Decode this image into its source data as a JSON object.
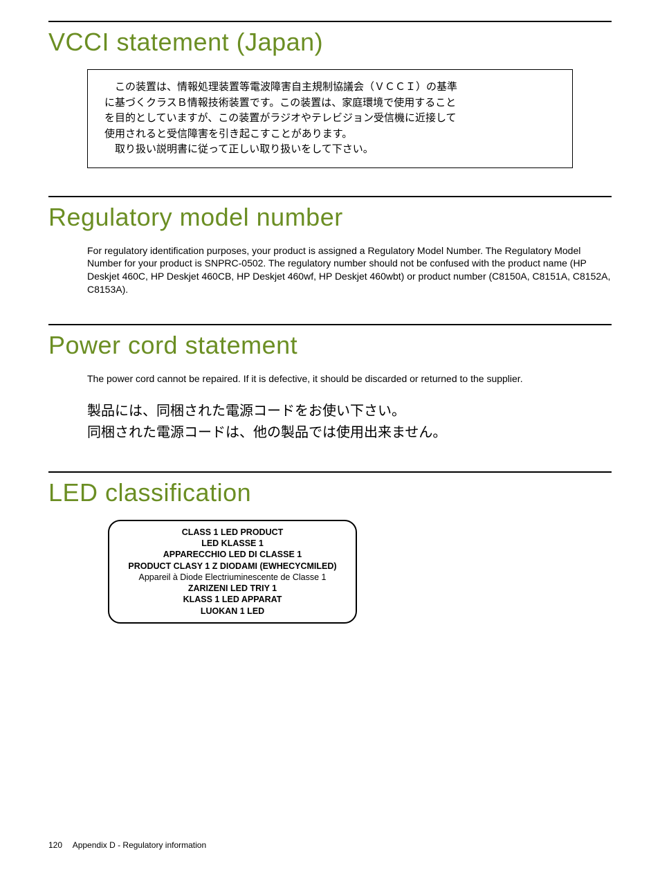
{
  "colors": {
    "heading": "#6b8e23",
    "text": "#000000",
    "background": "#ffffff",
    "rule": "#000000"
  },
  "typography": {
    "heading_fontsize": 36,
    "heading_weight": 300,
    "body_fontsize": 14,
    "jp_large_fontsize": 20,
    "led_fontsize": 12.5,
    "footer_fontsize": 12
  },
  "sections": {
    "vcci": {
      "heading": "VCCI statement (Japan)",
      "jp_box_lines": [
        "　この装置は、情報処理装置等電波障害自主規制協議会（ＶＣＣＩ）の基準",
        "に基づくクラスＢ情報技術装置です。この装置は、家庭環境で使用すること",
        "を目的としていますが、この装置がラジオやテレビジョン受信機に近接して",
        "使用されると受信障害を引き起こすことがあります。",
        "　取り扱い説明書に従って正しい取り扱いをして下さい。"
      ]
    },
    "regmodel": {
      "heading": "Regulatory model number",
      "body": "For regulatory identification purposes, your product is assigned a Regulatory Model Number. The Regulatory Model Number for your product is SNPRC-0502. The regulatory number should not be confused with the product name (HP Deskjet 460C, HP Deskjet 460CB, HP Deskjet 460wf, HP Deskjet 460wbt) or product number (C8150A, C8151A, C8152A, C8153A)."
    },
    "powercord": {
      "heading": "Power cord statement",
      "body": "The power cord cannot be repaired. If it is defective, it should be discarded or returned to the supplier.",
      "jp_lines": [
        "製品には、同梱された電源コードをお使い下さい。",
        "同梱された電源コードは、他の製品では使用出来ません。"
      ]
    },
    "led": {
      "heading": "LED classification",
      "box_lines": [
        {
          "text": "CLASS 1 LED PRODUCT",
          "bold": true
        },
        {
          "text": "LED KLASSE 1",
          "bold": true
        },
        {
          "text": "APPARECCHIO LED DI CLASSE 1",
          "bold": true
        },
        {
          "text": "PRODUCT CLASY 1 Z DIODAMI (EWHECYCMILED)",
          "bold": true
        },
        {
          "text": "Appareil à Diode Electriuminescente de Classe 1",
          "bold": false
        },
        {
          "text": "ZARIZENI LED TRIY 1",
          "bold": true
        },
        {
          "text": "KLASS 1 LED APPARAT",
          "bold": true
        },
        {
          "text": "LUOKAN 1 LED",
          "bold": true
        }
      ]
    }
  },
  "footer": {
    "page_number": "120",
    "label": "Appendix D - Regulatory information"
  }
}
